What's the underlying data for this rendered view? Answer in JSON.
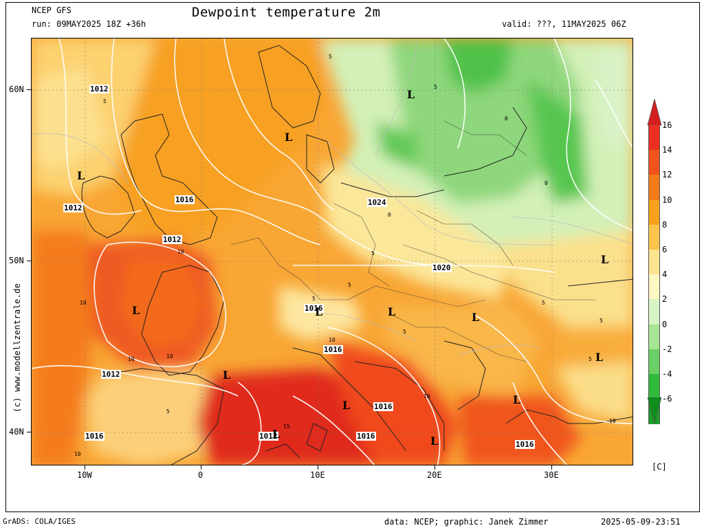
{
  "header": {
    "model": "NCEP GFS",
    "run": "run: 09MAY2025 18Z +36h",
    "title": "Dewpoint temperature 2m",
    "valid": "valid: ???, 11MAY2025 06Z"
  },
  "axes": {
    "lat_labels": [
      "60N",
      "50N",
      "40N"
    ],
    "lon_labels": [
      "10W",
      "0",
      "10E",
      "20E",
      "30E"
    ]
  },
  "side_credit": "(c) www.modellzentrale.de",
  "colorbar": {
    "unit": "[C]",
    "labels": [
      "16",
      "14",
      "12",
      "10",
      "8",
      "6",
      "4",
      "2",
      "0",
      "-2",
      "-4",
      "-6"
    ],
    "colors": [
      "#ed2f22",
      "#f0541c",
      "#f47a18",
      "#f7a21c",
      "#fac54a",
      "#fde48e",
      "#fdf7c2",
      "#d7f4c5",
      "#a5e594",
      "#69d066",
      "#30bb3c",
      "#1aa028"
    ]
  },
  "pressure_labels": [
    "1012",
    "1012",
    "1016",
    "1012",
    "1024",
    "1020",
    "1016",
    "1012",
    "1016",
    "1016",
    "1012",
    "1016",
    "1016",
    "1016",
    "1016"
  ],
  "low_markers": [
    "L",
    "L",
    "L",
    "L",
    "L",
    "L",
    "L",
    "L",
    "L",
    "L",
    "L",
    "L",
    "L",
    "L"
  ],
  "small_labels": [
    "5",
    "5",
    "5",
    "0",
    "0",
    "0",
    "5",
    "10",
    "10",
    "10",
    "10",
    "10",
    "5",
    "5",
    "5",
    "5",
    "15",
    "10",
    "5",
    "5",
    "5",
    "10",
    "10"
  ],
  "footer": {
    "left": "GrADS: COLA/IGES",
    "middle": "data: NCEP; graphic: Janek Zimmer",
    "right": "2025-05-09-23:51"
  }
}
